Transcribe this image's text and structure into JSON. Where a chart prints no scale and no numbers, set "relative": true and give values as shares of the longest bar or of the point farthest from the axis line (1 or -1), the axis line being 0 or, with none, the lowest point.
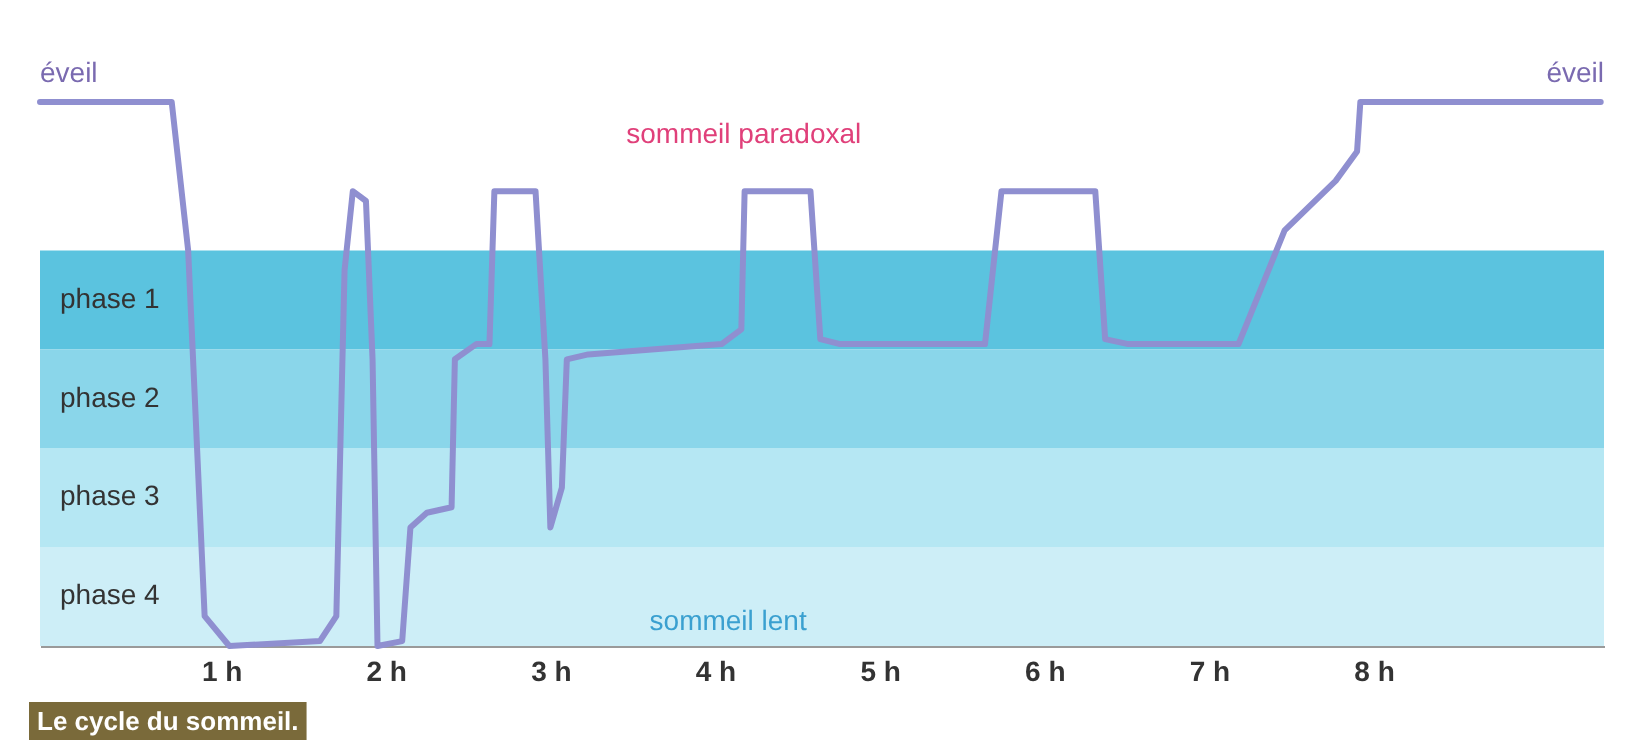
{
  "chart_data": {
    "type": "line",
    "title": "Le cycle du sommeil.",
    "relative": true,
    "x": [
      -0.1,
      0.7,
      0.8,
      0.9,
      1.05,
      1.6,
      1.7,
      1.75,
      1.8,
      1.88,
      1.92,
      1.95,
      2.1,
      2.15,
      2.25,
      2.4,
      2.42,
      2.55,
      2.63,
      2.66,
      2.91,
      2.97,
      3.0,
      3.07,
      3.1,
      3.23,
      4.04,
      4.16,
      4.18,
      4.58,
      4.64,
      4.76,
      5.64,
      5.74,
      6.31,
      6.37,
      6.51,
      7.18,
      7.46,
      7.77,
      7.9,
      7.92,
      9.38
    ],
    "series": [
      {
        "color": "#8f8fd0",
        "values": [
          1,
          1,
          0.727,
          0.055,
          0,
          0.009,
          0.055,
          0.691,
          0.836,
          0.818,
          0.527,
          0,
          0.009,
          0.218,
          0.245,
          0.255,
          0.527,
          0.555,
          0.555,
          0.836,
          0.836,
          0.527,
          0.218,
          0.291,
          0.527,
          0.536,
          0.555,
          0.582,
          0.836,
          0.836,
          0.564,
          0.555,
          0.555,
          0.836,
          0.836,
          0.564,
          0.555,
          0.555,
          0.764,
          0.855,
          0.909,
          1,
          1
        ]
      }
    ],
    "xlim": [
      -0.1,
      9.4
    ],
    "xticks": [
      {
        "value": 1,
        "label": "1 h"
      },
      {
        "value": 2,
        "label": "2 h"
      },
      {
        "value": 3,
        "label": "3 h"
      },
      {
        "value": 4,
        "label": "4 h"
      },
      {
        "value": 5,
        "label": "5 h"
      },
      {
        "value": 6,
        "label": "6 h"
      },
      {
        "value": 7,
        "label": "7 h"
      },
      {
        "value": 8,
        "label": "8 h"
      }
    ],
    "bands": [
      {
        "axis": "y",
        "from": 0.545,
        "to": 0.727,
        "color": "#5bc3df",
        "label": "phase 1"
      },
      {
        "axis": "y",
        "from": 0.364,
        "to": 0.545,
        "color": "#8ad6ea",
        "label": "phase 2"
      },
      {
        "axis": "y",
        "from": 0.182,
        "to": 0.364,
        "color": "#b5e7f3",
        "label": "phase 3"
      },
      {
        "axis": "y",
        "from": 0,
        "to": 0.182,
        "color": "#cdeef7",
        "label": "phase 4"
      }
    ],
    "annotations": [
      "éveil",
      "sommeil paradoxal",
      "sommeil lent",
      "éveil"
    ],
    "grid": false,
    "marker": "none",
    "line_style": "solid"
  }
}
